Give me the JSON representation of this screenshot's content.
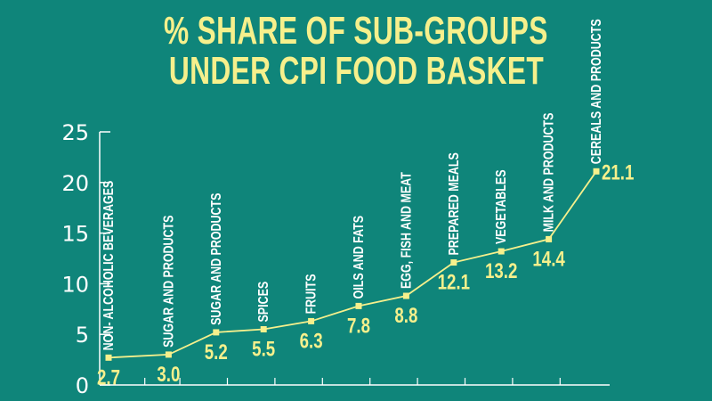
{
  "title_lines": [
    "% SHARE OF SUB-GROUPS",
    "UNDER CPI FOOD BASKET"
  ],
  "chart_data": {
    "type": "line",
    "title": "% SHARE OF SUB-GROUPS UNDER CPI FOOD BASKET",
    "xlabel": "",
    "ylabel": "",
    "ylim": [
      0,
      25
    ],
    "yticks": [
      0,
      5,
      10,
      15,
      20,
      25
    ],
    "categories": [
      "NON- ALCOHOLIC BEVERAGES",
      "SUGAR AND PRODUCTS",
      "SUGAR AND PRODUCTS",
      "SPICES",
      "FRUITS",
      "OILS AND FATS",
      "EGG, FISH AND MEAT",
      "PREPARED MEALS",
      "VEGETABLES",
      "MILK AND PRODUCTS",
      "CEREALS AND PRODUCTS"
    ],
    "values": [
      2.7,
      3.0,
      5.2,
      5.5,
      6.3,
      7.8,
      8.8,
      12.1,
      13.2,
      14.4,
      21.1
    ],
    "value_labels": [
      "2.7",
      "3.0",
      "5.2",
      "5.5",
      "6.3",
      "7.8",
      "8.8",
      "12.1",
      "13.2",
      "14.4",
      "21.1"
    ],
    "grid": false,
    "colors": {
      "background": "#0f857a",
      "line": "#f6f08c",
      "axis": "#ffffff"
    }
  }
}
